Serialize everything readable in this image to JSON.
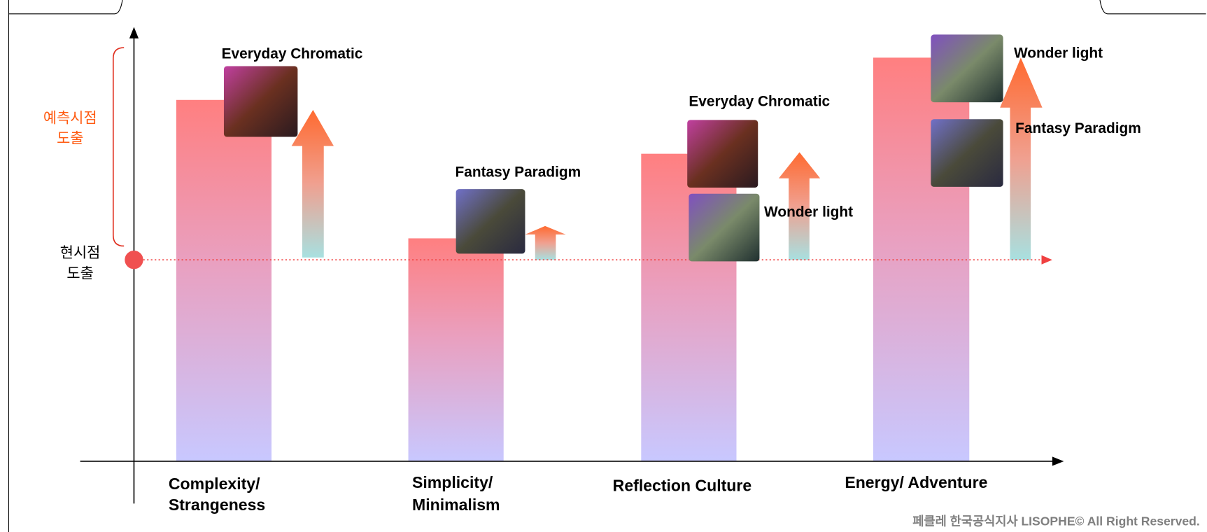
{
  "axis": {
    "forecast_label": [
      "예측시점",
      "도출"
    ],
    "current_label": [
      "현시점",
      "도출"
    ]
  },
  "columns": [
    {
      "label": [
        "Complexity/",
        "Strangeness"
      ],
      "products": [
        "Everyday Chromatic"
      ]
    },
    {
      "label": [
        "Simplicity/",
        "Minimalism"
      ],
      "products": [
        "Fantasy Paradigm"
      ]
    },
    {
      "label": [
        "Reflection Culture"
      ],
      "products": [
        "Everyday Chromatic",
        "Wonder light"
      ]
    },
    {
      "label": [
        "Energy/ Adventure"
      ],
      "products": [
        "Wonder light",
        "Fantasy Paradigm"
      ]
    }
  ],
  "footer": "페클레 한국공식지사 LISOPHE© All Right Reserved."
}
